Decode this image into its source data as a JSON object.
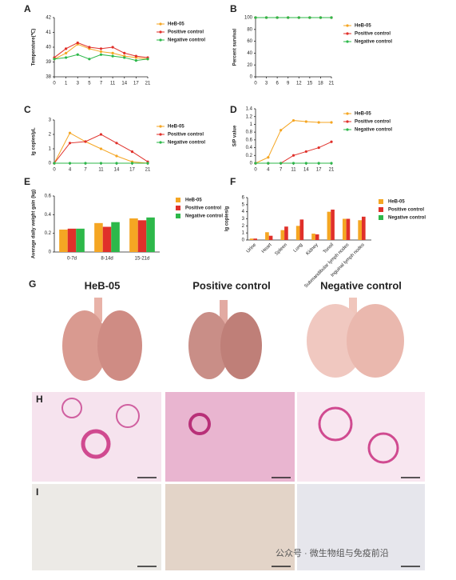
{
  "chart_data": [
    {
      "type": "line",
      "label": "A",
      "ylabel": "Temperature(℃)",
      "categories": [
        "0",
        "1",
        "3",
        "5",
        "7",
        "11",
        "14",
        "17",
        "21"
      ],
      "ylim": [
        38,
        42
      ],
      "yticks": [
        38,
        39,
        40,
        41,
        42
      ],
      "series": [
        {
          "name": "HeB-05",
          "color": "#f5a623",
          "values": [
            39.2,
            39.6,
            40.2,
            39.9,
            39.7,
            39.6,
            39.4,
            39.3,
            39.2
          ]
        },
        {
          "name": "Positive control",
          "color": "#e0302a",
          "values": [
            39.3,
            39.9,
            40.3,
            40.0,
            39.9,
            40.0,
            39.6,
            39.4,
            39.3
          ]
        },
        {
          "name": "Negative control",
          "color": "#2db84a",
          "values": [
            39.2,
            39.3,
            39.5,
            39.2,
            39.5,
            39.4,
            39.3,
            39.1,
            39.2
          ]
        }
      ]
    },
    {
      "type": "line",
      "label": "B",
      "ylabel": "Percent survival",
      "categories": [
        "0",
        "3",
        "6",
        "9",
        "12",
        "15",
        "18",
        "21"
      ],
      "ylim": [
        0,
        100
      ],
      "yticks": [
        0,
        20,
        40,
        60,
        80,
        100
      ],
      "series": [
        {
          "name": "HeB-05",
          "color": "#f5a623",
          "values": [
            100,
            100,
            100,
            100,
            100,
            100,
            100,
            100
          ]
        },
        {
          "name": "Positive control",
          "color": "#e0302a",
          "values": [
            100,
            100,
            100,
            100,
            100,
            100,
            100,
            100
          ]
        },
        {
          "name": "Negative control",
          "color": "#2db84a",
          "values": [
            100,
            100,
            100,
            100,
            100,
            100,
            100,
            100
          ]
        }
      ]
    },
    {
      "type": "line",
      "label": "C",
      "ylabel": "lg copies/μL",
      "categories": [
        "0",
        "4",
        "7",
        "11",
        "14",
        "17",
        "21"
      ],
      "ylim": [
        0,
        3
      ],
      "yticks": [
        0,
        1,
        2,
        3
      ],
      "series": [
        {
          "name": "HeB-05",
          "color": "#f5a623",
          "values": [
            0,
            2.1,
            1.5,
            1.0,
            0.5,
            0.1,
            0
          ]
        },
        {
          "name": "Positive control",
          "color": "#e0302a",
          "values": [
            0,
            1.4,
            1.5,
            2.0,
            1.4,
            0.8,
            0.1
          ]
        },
        {
          "name": "Negative control",
          "color": "#2db84a",
          "values": [
            0,
            0,
            0,
            0,
            0,
            0,
            0
          ]
        }
      ]
    },
    {
      "type": "line",
      "label": "D",
      "ylabel": "S/P value",
      "categories": [
        "0",
        "4",
        "7",
        "11",
        "14",
        "17",
        "21"
      ],
      "ylim": [
        0,
        1.4
      ],
      "yticks": [
        0,
        0.2,
        0.4,
        0.6,
        0.8,
        1.0,
        1.2,
        1.4
      ],
      "series": [
        {
          "name": "HeB-05",
          "color": "#f5a623",
          "values": [
            0,
            0.15,
            0.85,
            1.1,
            1.07,
            1.05,
            1.05
          ]
        },
        {
          "name": "Positive control",
          "color": "#e0302a",
          "values": [
            0,
            0,
            0,
            0.2,
            0.3,
            0.4,
            0.55
          ]
        },
        {
          "name": "Negative control",
          "color": "#2db84a",
          "values": [
            0,
            0,
            0,
            0,
            0,
            0,
            0
          ]
        }
      ]
    },
    {
      "type": "bar",
      "label": "E",
      "ylabel": "Average daily weight gain (kg)",
      "categories": [
        "0-7d",
        "8-14d",
        "15-21d"
      ],
      "ylim": [
        0,
        0.6
      ],
      "yticks": [
        0,
        0.2,
        0.4,
        0.6
      ],
      "series": [
        {
          "name": "HeB-05",
          "color": "#f5a623",
          "values": [
            0.24,
            0.31,
            0.36
          ]
        },
        {
          "name": "Positive control",
          "color": "#e0302a",
          "values": [
            0.25,
            0.27,
            0.34
          ]
        },
        {
          "name": "Negative control",
          "color": "#2db84a",
          "values": [
            0.25,
            0.32,
            0.37
          ]
        }
      ]
    },
    {
      "type": "bar",
      "label": "F",
      "ylabel": "lg copies/g",
      "categories": [
        "Urine",
        "Heart",
        "Spleen",
        "Lung",
        "Kidney",
        "Tonsil",
        "Submandibular lymph nodes",
        "Inguinal lymph nodes"
      ],
      "ylim": [
        0,
        6
      ],
      "yticks": [
        0,
        1,
        2,
        3,
        4,
        5,
        6
      ],
      "series": [
        {
          "name": "HeB-05",
          "color": "#f5a623",
          "values": [
            0.2,
            1.1,
            1.4,
            2.0,
            0.9,
            4.0,
            3.0,
            2.8
          ]
        },
        {
          "name": "Positive control",
          "color": "#e0302a",
          "values": [
            0.2,
            0.6,
            1.9,
            2.9,
            0.8,
            4.3,
            3.0,
            3.3
          ]
        },
        {
          "name": "Negative control",
          "color": "#2db84a",
          "values": [
            0,
            0,
            0,
            0,
            0,
            0,
            0,
            0
          ]
        }
      ]
    }
  ],
  "figure": {
    "g_label": "G",
    "h_label": "H",
    "i_label": "I",
    "g_titles": [
      "HeB-05",
      "Positive control",
      "Negative control"
    ],
    "watermark": "公众号 · 微生物组与免疫前沿"
  }
}
